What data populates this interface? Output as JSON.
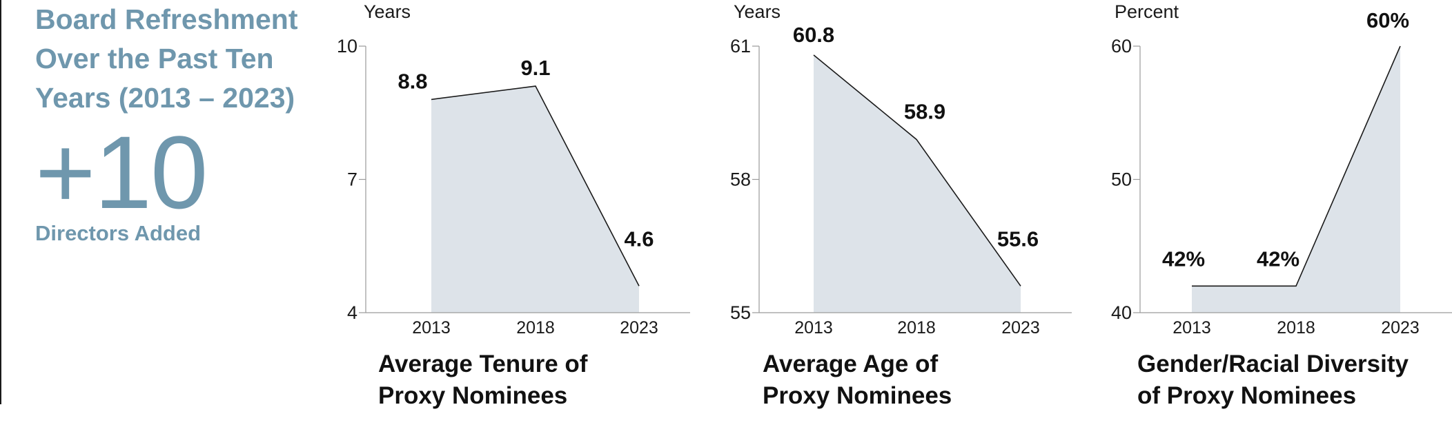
{
  "intro": {
    "title_lines": [
      "Board Refreshment",
      "Over the Past Ten",
      "Years (2013 – 2023)"
    ],
    "stat": "+10",
    "stat_caption": "Directors Added"
  },
  "colors": {
    "accent": "#6f97ad",
    "area_fill": "#dde3e9",
    "line": "#1a1a1a"
  },
  "chart_data": [
    {
      "type": "area",
      "unit_label": "Years",
      "title_lines": [
        "Average Tenure of",
        "Proxy Nominees"
      ],
      "categories": [
        "2013",
        "2018",
        "2023"
      ],
      "values": [
        8.8,
        9.1,
        4.6
      ],
      "value_labels": [
        "8.8",
        "9.1",
        "4.6"
      ],
      "yticks": [
        "10",
        "7",
        "4"
      ],
      "ylim": [
        4,
        10
      ],
      "grid": false
    },
    {
      "type": "area",
      "unit_label": "Years",
      "title_lines": [
        "Average Age of",
        "Proxy Nominees"
      ],
      "categories": [
        "2013",
        "2018",
        "2023"
      ],
      "values": [
        60.8,
        58.9,
        55.6
      ],
      "value_labels": [
        "60.8",
        "58.9",
        "55.6"
      ],
      "yticks": [
        "61",
        "58",
        "55"
      ],
      "ylim": [
        55,
        61
      ],
      "grid": false
    },
    {
      "type": "area",
      "unit_label": "Percent",
      "title_lines": [
        "Gender/Racial Diversity",
        "of Proxy Nominees"
      ],
      "categories": [
        "2013",
        "2018",
        "2023"
      ],
      "values": [
        42,
        42,
        60
      ],
      "value_labels": [
        "42%",
        "42%",
        "60%"
      ],
      "yticks": [
        "60",
        "50",
        "40"
      ],
      "ylim": [
        40,
        60
      ],
      "grid": false
    }
  ]
}
